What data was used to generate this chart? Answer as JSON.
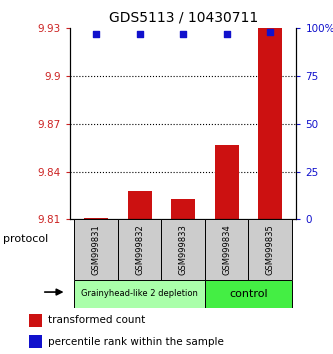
{
  "title": "GDS5113 / 10430711",
  "samples": [
    "GSM999831",
    "GSM999832",
    "GSM999833",
    "GSM999834",
    "GSM999835"
  ],
  "bar_values": [
    9.811,
    9.828,
    9.823,
    9.857,
    9.93
  ],
  "bar_base": 9.81,
  "dot_values": [
    97,
    97,
    97,
    97,
    98
  ],
  "ylim_left": [
    9.81,
    9.93
  ],
  "ylim_right": [
    0,
    100
  ],
  "yticks_left": [
    9.81,
    9.84,
    9.87,
    9.9,
    9.93
  ],
  "ytick_labels_left": [
    "9.81",
    "9.84",
    "9.87",
    "9.9",
    "9.93"
  ],
  "yticks_right": [
    0,
    25,
    50,
    75,
    100
  ],
  "ytick_labels_right": [
    "0",
    "25",
    "50",
    "75",
    "100%"
  ],
  "bar_color": "#cc1111",
  "dot_color": "#1111cc",
  "grid_color": "#000000",
  "groups": [
    {
      "label": "Grainyhead-like 2 depletion",
      "samples": [
        0,
        1,
        2
      ],
      "color": "#aaffaa"
    },
    {
      "label": "control",
      "samples": [
        3,
        4
      ],
      "color": "#44ee44"
    }
  ],
  "protocol_label": "protocol",
  "legend_bar_label": "transformed count",
  "legend_dot_label": "percentile rank within the sample",
  "bg_color": "#ffffff",
  "plot_bg": "#ffffff",
  "axis_color_left": "#cc2222",
  "axis_color_right": "#1111cc",
  "title_fontsize": 10,
  "tick_fontsize": 7.5,
  "legend_fontsize": 7.5,
  "sample_fontsize": 6,
  "group_fontsize_0": 6,
  "group_fontsize_1": 8,
  "protocol_fontsize": 8,
  "grid_yticks": [
    9.84,
    9.87,
    9.9
  ]
}
